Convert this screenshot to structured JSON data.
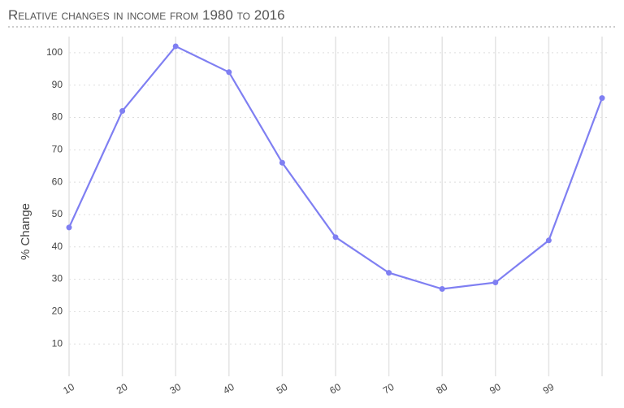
{
  "chart_data": {
    "type": "line",
    "title": "Relative changes in income from 1980 to 2016",
    "y_label": "% Change",
    "categories": [
      "10",
      "20",
      "30",
      "40",
      "50",
      "60",
      "70",
      "80",
      "90",
      "99",
      null
    ],
    "series": [
      {
        "name": "% Change",
        "color": "#7f7ff2",
        "values": [
          46,
          82,
          102,
          94,
          66,
          43,
          32,
          27,
          29,
          42,
          86
        ]
      }
    ],
    "ylim": [
      0,
      105
    ],
    "yticks": [
      10,
      20,
      30,
      40,
      50,
      60,
      70,
      80,
      90,
      100
    ],
    "grid": true
  }
}
